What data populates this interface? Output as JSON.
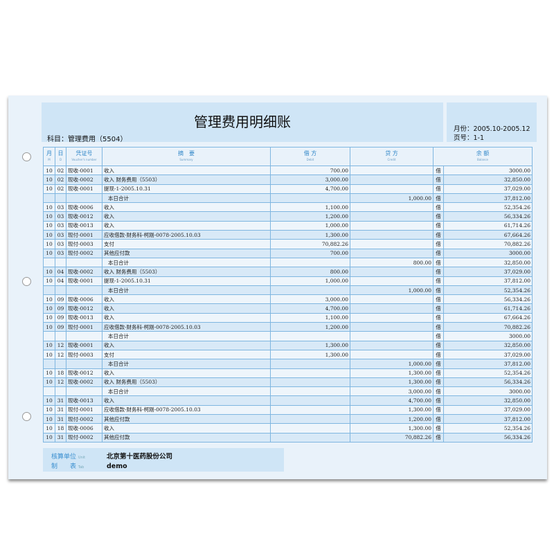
{
  "title": "管理费用明细账",
  "subject": "科目：管理费用（5504）",
  "period": "月份：2005.10-2005.12",
  "page_no": "页号：1-1",
  "columns": {
    "month": "月",
    "month_en": "M",
    "day": "日",
    "day_en": "D",
    "voucher": "凭证号",
    "voucher_en": "Voucher's number",
    "summary": "摘　要",
    "summary_en": "Summary",
    "debit": "借 方",
    "debit_en": "Debit",
    "credit": "贷 方",
    "credit_en": "Credit",
    "balance": "余 额",
    "balance_en": "Balance"
  },
  "rows": [
    [
      "10",
      "02",
      "现收-0001",
      "收入",
      "700.00",
      "",
      "借",
      "3000.00"
    ],
    [
      "10",
      "02",
      "现收-0002",
      "收入 财务费用（5503）",
      "3,000.00",
      "",
      "借",
      "32,850.00"
    ],
    [
      "10",
      "02",
      "现收-0001",
      "提现-1-2005.10.31",
      "4,700.00",
      "",
      "借",
      "37,029.00"
    ],
    [
      "",
      "",
      "",
      "本日合计",
      "",
      "1,000.00",
      "借",
      "37,812.00"
    ],
    [
      "10",
      "03",
      "现收-0006",
      "收入",
      "1,100.00",
      "",
      "借",
      "52,354.26"
    ],
    [
      "10",
      "03",
      "现收-0012",
      "收入",
      "1,200.00",
      "",
      "借",
      "56,334.26"
    ],
    [
      "10",
      "03",
      "现收-0013",
      "收入",
      "1,000.00",
      "",
      "借",
      "61,714.26"
    ],
    [
      "10",
      "03",
      "现付-0001",
      "应收借款-财务科-柯刚-0078-2005.10.03",
      "1,300.00",
      "",
      "借",
      "67,664.26"
    ],
    [
      "10",
      "03",
      "现付-0003",
      "支付",
      "70,882.26",
      "",
      "借",
      "70,882.26"
    ],
    [
      "10",
      "03",
      "现付-0002",
      "其他应付款",
      "700.00",
      "",
      "借",
      "3000.00"
    ],
    [
      "",
      "",
      "",
      "本日合计",
      "",
      "800.00",
      "借",
      "32,850.00"
    ],
    [
      "10",
      "04",
      "现收-0002",
      "收入 财务费用（5503）",
      "800.00",
      "",
      "借",
      "37,029.00"
    ],
    [
      "10",
      "04",
      "现收-0001",
      "提现-1-2005.10.31",
      "1,000.00",
      "",
      "借",
      "37,812.00"
    ],
    [
      "",
      "",
      "",
      "本日合计",
      "",
      "1,000.00",
      "借",
      "52,354.26"
    ],
    [
      "10",
      "09",
      "现收-0006",
      "收入",
      "3,000.00",
      "",
      "借",
      "56,334.26"
    ],
    [
      "10",
      "09",
      "现收-0012",
      "收入",
      "4,700.00",
      "",
      "借",
      "61,714.26"
    ],
    [
      "10",
      "09",
      "现收-0013",
      "收入",
      "1,100.00",
      "",
      "借",
      "67,664.26"
    ],
    [
      "10",
      "09",
      "现付-0001",
      "应收借款-财务科-柯刚-0078-2005.10.03",
      "1,200.00",
      "",
      "借",
      "70,882.26"
    ],
    [
      "",
      "",
      "",
      "本日合计",
      "",
      "",
      "借",
      "3000.00"
    ],
    [
      "10",
      "12",
      "现收-0001",
      "收入",
      "1,300.00",
      "",
      "借",
      "32,850.00"
    ],
    [
      "10",
      "12",
      "现付-0003",
      "支付",
      "1,300.00",
      "",
      "借",
      "37,029.00"
    ],
    [
      "",
      "",
      "",
      "本日合计",
      "",
      "1,000.00",
      "借",
      "37,812.00"
    ],
    [
      "10",
      "18",
      "现收-0012",
      "收入",
      "",
      "1,300.00",
      "借",
      "52,354.26"
    ],
    [
      "10",
      "12",
      "现收-0002",
      "收入 财务费用（5503）",
      "",
      "1,300.00",
      "借",
      "56,334.26"
    ],
    [
      "",
      "",
      "",
      "本日合计",
      "",
      "3,000.00",
      "借",
      "3000.00"
    ],
    [
      "10",
      "31",
      "现收-0013",
      "收入",
      "",
      "4,700.00",
      "借",
      "32,850.00"
    ],
    [
      "10",
      "31",
      "现付-0001",
      "应收借款-财务科-柯刚-0078-2005.10.03",
      "",
      "1,300.00",
      "借",
      "37,029.00"
    ],
    [
      "10",
      "31",
      "现付-0002",
      "其他应付款",
      "",
      "1,200.00",
      "借",
      "37,812.00"
    ],
    [
      "10",
      "18",
      "现收-0006",
      "收入",
      "",
      "1,300.00",
      "借",
      "52,354.26"
    ],
    [
      "10",
      "31",
      "现付-0002",
      "其他应付款",
      "",
      "70,882.26",
      "借",
      "56,334.26"
    ]
  ],
  "footer": {
    "unit_label": "核算单位",
    "unit_en": "Unit",
    "unit_value": "北京第十医药股份公司",
    "maker_label": "制　　表",
    "maker_en": "Tab",
    "maker_value": "demo"
  }
}
